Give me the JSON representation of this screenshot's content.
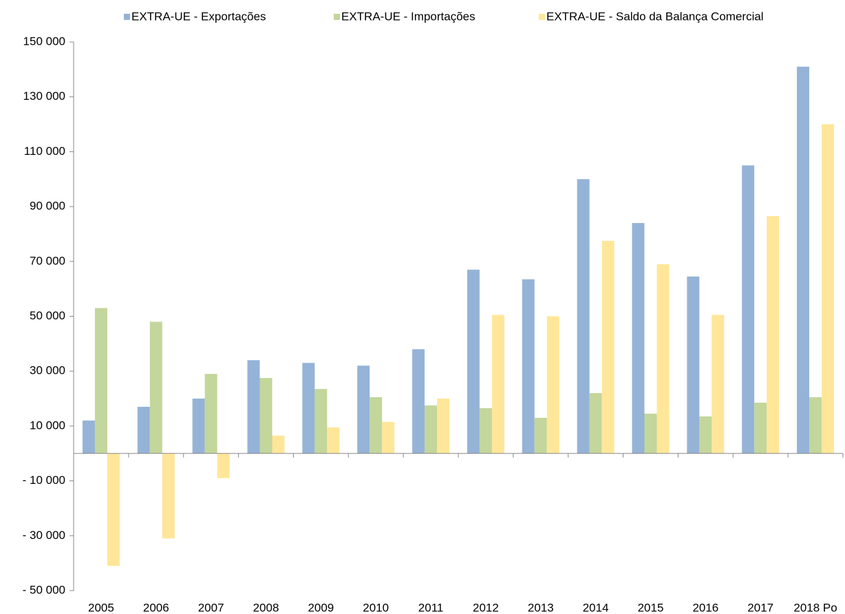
{
  "chart_data": {
    "type": "bar",
    "categories": [
      "2005",
      "2006",
      "2007",
      "2008",
      "2009",
      "2010",
      "2011",
      "2012",
      "2013",
      "2014",
      "2015",
      "2016",
      "2017",
      "2018 Po"
    ],
    "series": [
      {
        "name": "EXTRA-UE - Exportações",
        "color": "#95b3d7",
        "values": [
          12000,
          17000,
          20000,
          34000,
          33000,
          32000,
          38000,
          67000,
          63500,
          100000,
          84000,
          64500,
          105000,
          141000
        ]
      },
      {
        "name": "EXTRA-UE - Importações",
        "color": "#c3d69b",
        "values": [
          53000,
          48000,
          29000,
          27500,
          23500,
          20500,
          17500,
          16500,
          13000,
          22000,
          14500,
          13500,
          18500,
          20500
        ]
      },
      {
        "name": "EXTRA-UE - Saldo da Balança Comercial",
        "color": "#ffe699",
        "values": [
          -41000,
          -31000,
          -9000,
          6500,
          9500,
          11500,
          20000,
          50500,
          50000,
          77500,
          69000,
          50500,
          86500,
          120000
        ]
      }
    ],
    "ylim": [
      -50000,
      150000
    ],
    "yticks": [
      {
        "value": -50000,
        "label": "- 50 000"
      },
      {
        "value": -30000,
        "label": "- 30 000"
      },
      {
        "value": -10000,
        "label": "- 10 000"
      },
      {
        "value": 10000,
        "label": "10 000"
      },
      {
        "value": 30000,
        "label": "30 000"
      },
      {
        "value": 50000,
        "label": "50 000"
      },
      {
        "value": 70000,
        "label": "70 000"
      },
      {
        "value": 90000,
        "label": "90 000"
      },
      {
        "value": 110000,
        "label": "110 000"
      },
      {
        "value": 130000,
        "label": "130 000"
      },
      {
        "value": 150000,
        "label": "150 000"
      }
    ],
    "legend": "top"
  }
}
